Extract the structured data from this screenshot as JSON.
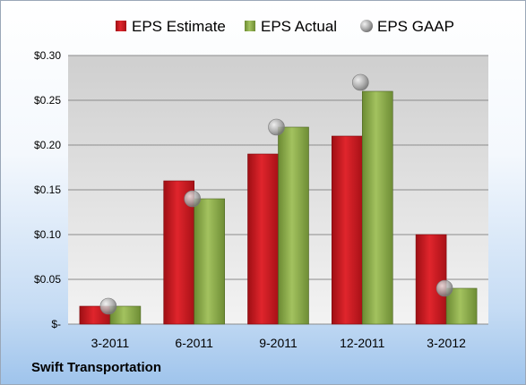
{
  "company": "Swift Transportation",
  "colors": {
    "estimate": "#c8161d",
    "actual": "#8aab4a",
    "gaap": "#a8a8a8"
  },
  "chart_data": {
    "type": "bar",
    "title": "",
    "xlabel": "",
    "ylabel": "",
    "categories": [
      "3-2011",
      "6-2011",
      "9-2011",
      "12-2011",
      "3-2012"
    ],
    "series": [
      {
        "name": "EPS Estimate",
        "kind": "bar",
        "color": "#c8161d",
        "values": [
          0.02,
          0.16,
          0.19,
          0.21,
          0.1
        ]
      },
      {
        "name": "EPS Actual",
        "kind": "bar",
        "color": "#8aab4a",
        "values": [
          0.02,
          0.14,
          0.22,
          0.26,
          0.04
        ]
      },
      {
        "name": "EPS GAAP",
        "kind": "marker",
        "color": "#a8a8a8",
        "values": [
          0.02,
          0.14,
          0.22,
          0.27,
          0.04
        ]
      }
    ],
    "ylim": [
      0,
      0.3
    ],
    "yticks": [
      0,
      0.05,
      0.1,
      0.15,
      0.2,
      0.25,
      0.3
    ],
    "ytick_labels": [
      "$-",
      "$0.05",
      "$0.10",
      "$0.15",
      "$0.20",
      "$0.25",
      "$0.30"
    ],
    "grid": true,
    "legend": "top"
  }
}
